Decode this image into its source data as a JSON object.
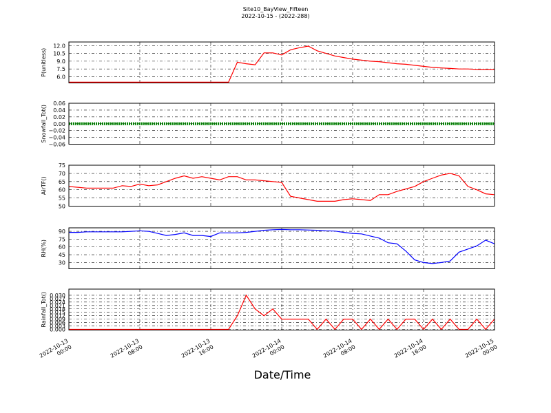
{
  "title": "Site10_BayView_Fifteen",
  "subtitle": "2022-10-15 - (2022-288)",
  "xlabel": "Date/Time",
  "x": [
    "2022-10-13 00:00",
    "2022-10-13 01:00",
    "2022-10-13 02:00",
    "2022-10-13 03:00",
    "2022-10-13 04:00",
    "2022-10-13 05:00",
    "2022-10-13 06:00",
    "2022-10-13 07:00",
    "2022-10-13 08:00",
    "2022-10-13 09:00",
    "2022-10-13 10:00",
    "2022-10-13 11:00",
    "2022-10-13 12:00",
    "2022-10-13 13:00",
    "2022-10-13 14:00",
    "2022-10-13 15:00",
    "2022-10-13 16:00",
    "2022-10-13 17:00",
    "2022-10-13 18:00",
    "2022-10-13 19:00",
    "2022-10-13 20:00",
    "2022-10-13 21:00",
    "2022-10-13 22:00",
    "2022-10-13 23:00",
    "2022-10-14 00:00",
    "2022-10-14 01:00",
    "2022-10-14 02:00",
    "2022-10-14 03:00",
    "2022-10-14 04:00",
    "2022-10-14 05:00",
    "2022-10-14 06:00",
    "2022-10-14 07:00",
    "2022-10-14 08:00",
    "2022-10-14 09:00",
    "2022-10-14 10:00",
    "2022-10-14 11:00",
    "2022-10-14 12:00",
    "2022-10-14 13:00",
    "2022-10-14 14:00",
    "2022-10-14 15:00",
    "2022-10-14 16:00",
    "2022-10-14 17:00",
    "2022-10-14 18:00",
    "2022-10-14 19:00",
    "2022-10-14 20:00",
    "2022-10-14 21:00",
    "2022-10-14 22:00",
    "2022-10-14 23:00",
    "2022-10-15 00:00"
  ],
  "xlim": [
    "2022-10-13 00:00",
    "2022-10-15 00:00"
  ],
  "xticks": [
    {
      "value": "2022-10-13 00:00",
      "label": [
        "2022-10-13",
        "00:00"
      ]
    },
    {
      "value": "2022-10-13 08:00",
      "label": [
        "2022-10-13",
        "08:00"
      ]
    },
    {
      "value": "2022-10-13 16:00",
      "label": [
        "2022-10-13",
        "16:00"
      ]
    },
    {
      "value": "2022-10-14 00:00",
      "label": [
        "2022-10-14",
        "00:00"
      ]
    },
    {
      "value": "2022-10-14 08:00",
      "label": [
        "2022-10-14",
        "08:00"
      ]
    },
    {
      "value": "2022-10-14 16:00",
      "label": [
        "2022-10-14",
        "16:00"
      ]
    },
    {
      "value": "2022-10-15 00:00",
      "label": [
        "2022-10-15",
        "00:00"
      ]
    }
  ],
  "chart_data": [
    {
      "type": "line",
      "ylabel": "P(unitless)",
      "grid": true,
      "ylim": [
        4.8,
        12.7
      ],
      "yticks": [
        {
          "value": 6,
          "label": "6.0"
        },
        7.5,
        {
          "value": 9,
          "label": "9.0"
        },
        10.5,
        {
          "value": 12,
          "label": "12.0"
        }
      ],
      "series": [
        {
          "name": "P",
          "color": "#ff0000",
          "values": [
            4.95,
            4.95,
            4.95,
            4.95,
            4.95,
            4.95,
            4.95,
            4.95,
            4.95,
            4.95,
            4.95,
            4.95,
            4.95,
            4.95,
            4.95,
            4.95,
            4.95,
            4.95,
            4.95,
            8.8,
            8.5,
            8.3,
            10.6,
            10.6,
            10.2,
            11.2,
            11.6,
            11.9,
            11.0,
            10.5,
            10.0,
            9.7,
            9.4,
            9.2,
            9.0,
            8.9,
            8.7,
            8.5,
            8.4,
            8.2,
            8.0,
            7.8,
            7.7,
            7.6,
            7.5,
            7.5,
            7.4,
            7.4,
            7.4
          ]
        }
      ]
    },
    {
      "type": "line",
      "ylabel": "Snowfall_Tot()",
      "grid": true,
      "ylim": [
        -0.06,
        0.06
      ],
      "yticks": [
        {
          "value": -0.06,
          "label": "−0.06"
        },
        {
          "value": -0.04,
          "label": "−0.04"
        },
        {
          "value": -0.02,
          "label": "−0.02"
        },
        {
          "value": 0,
          "label": "0.00"
        },
        0.02,
        0.04,
        0.06
      ],
      "series": [
        {
          "name": "Snowfall_Tot",
          "color": "#008000",
          "values": [
            0,
            0,
            0,
            0,
            0,
            0,
            0,
            0,
            0,
            0,
            0,
            0,
            0,
            0,
            0,
            0,
            0,
            0,
            0,
            0,
            0,
            0,
            0,
            0,
            0,
            0,
            0,
            0,
            0,
            0,
            0,
            0,
            0,
            0,
            0,
            0,
            0,
            0,
            0,
            0,
            0,
            0,
            0,
            0,
            0,
            0,
            0,
            0,
            0
          ]
        }
      ]
    },
    {
      "type": "line",
      "ylabel": "AirTF()",
      "grid": true,
      "ylim": [
        50,
        75
      ],
      "yticks": [
        50,
        55,
        60,
        65,
        70,
        75
      ],
      "series": [
        {
          "name": "AirTF",
          "color": "#ff0000",
          "values": [
            62,
            61.5,
            61,
            61,
            61,
            61,
            62.5,
            62,
            63.5,
            62.5,
            63,
            65,
            67,
            68.5,
            67,
            68,
            67,
            66,
            68,
            68,
            66,
            66,
            65.5,
            65,
            64.5,
            56,
            55,
            54,
            53,
            53,
            53,
            54,
            54.5,
            54,
            53.5,
            57,
            57,
            59,
            60.5,
            62,
            65,
            67,
            69,
            70,
            68.5,
            62,
            60,
            57.5,
            57
          ]
        }
      ]
    },
    {
      "type": "line",
      "ylabel": "RH(%)",
      "grid": true,
      "ylim": [
        18,
        96.7
      ],
      "yticks": [
        30,
        45,
        60,
        75,
        90
      ],
      "series": [
        {
          "name": "RH",
          "color": "#0000ff",
          "values": [
            88,
            88,
            89,
            89,
            89,
            89,
            89,
            90,
            91,
            90,
            86,
            82,
            84,
            87,
            82,
            82,
            80,
            87,
            87,
            87,
            88,
            90,
            92,
            93,
            93.5,
            93,
            93,
            92.5,
            92,
            91,
            90.5,
            88,
            86,
            85,
            81,
            77,
            68,
            66,
            52,
            35,
            30,
            28,
            30,
            33,
            50,
            56,
            62,
            73,
            66
          ]
        }
      ]
    },
    {
      "type": "line",
      "ylabel": "Rainfall_Tot()",
      "grid": true,
      "ylim": [
        -0.0006,
        0.0354
      ],
      "yticks": [
        {
          "value": 0,
          "label": "0.000"
        },
        0.003,
        0.006,
        0.009,
        0.012,
        0.015,
        0.018,
        0.021,
        0.024,
        0.027,
        {
          "value": 0.03,
          "label": "0.030"
        }
      ],
      "series": [
        {
          "name": "Rainfall_Tot",
          "color": "#ff0000",
          "values": [
            0,
            0,
            0,
            0,
            0,
            0,
            0,
            0,
            0,
            0,
            0,
            0,
            0,
            0,
            0,
            0,
            0,
            0,
            0,
            0.012,
            0.03,
            0.018,
            0.012,
            0.018,
            0.009,
            0.009,
            0.009,
            0.009,
            0,
            0.009,
            0,
            0.009,
            0.009,
            0,
            0.009,
            0,
            0.009,
            0,
            0.009,
            0.009,
            0,
            0.009,
            0,
            0.009,
            0,
            0,
            0.009,
            0,
            0.009
          ]
        }
      ]
    }
  ]
}
